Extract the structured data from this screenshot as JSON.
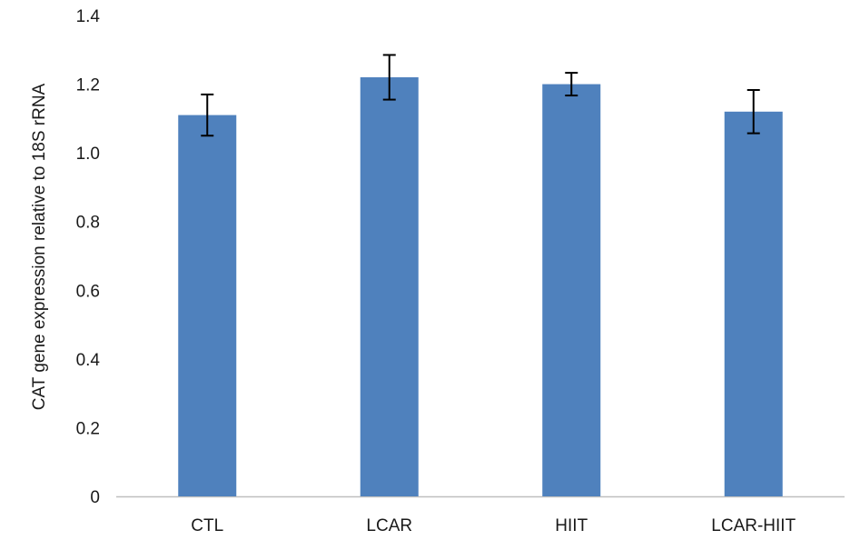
{
  "chart_data": {
    "type": "bar",
    "categories": [
      "CTL",
      "LCAR",
      "HIIT",
      "LCAR-HIIT"
    ],
    "series": [
      {
        "values": [
          1.11,
          1.22,
          1.2,
          1.12
        ],
        "error": [
          0.06,
          0.065,
          0.033,
          0.063
        ]
      }
    ],
    "title": "",
    "xlabel": "",
    "ylabel": "CAT gene expression relative to 18S rRNA",
    "ylim": [
      0,
      1.4
    ],
    "yticks": [
      0,
      0.2,
      0.4,
      0.6,
      0.8,
      1.0,
      1.2,
      1.4
    ],
    "ytick_labels": [
      "0",
      "0.2",
      "0.4",
      "0.6",
      "0.8",
      "1.0",
      "1.2",
      "1.4"
    ],
    "grid": false,
    "legend": "none",
    "colors": {
      "bar": "#4f81bd",
      "error_bar": "#000000",
      "axis": "#bfbfbf",
      "text": "#1a1a1a"
    }
  }
}
